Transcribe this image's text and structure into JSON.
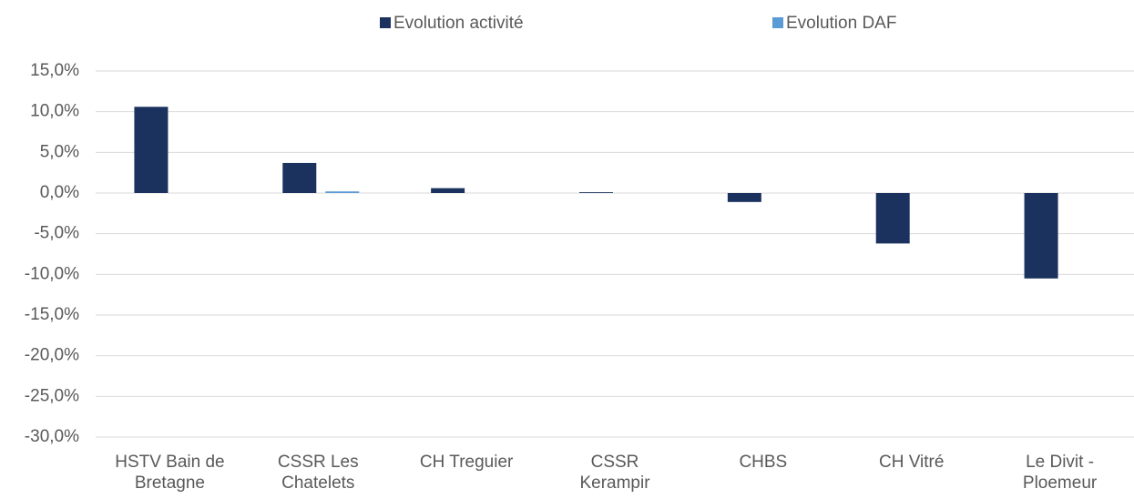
{
  "chart_data": {
    "type": "bar",
    "categories": [
      "HSTV Bain de Bretagne",
      "CSSR Les Chatelets",
      "CH Treguier",
      "CSSR Kerampir",
      "CHBS",
      "CH Vitré",
      "Le Divit - Ploemeur"
    ],
    "series": [
      {
        "name": "Evolution activité",
        "color": "#1b315e",
        "values": [
          10.6,
          3.7,
          0.6,
          0.1,
          -1.1,
          -6.2,
          -10.5
        ]
      },
      {
        "name": "Evolution DAF",
        "color": "#5b9bd5",
        "values": [
          0,
          0.2,
          0,
          0,
          0,
          0,
          0
        ]
      }
    ],
    "ylim": [
      -30,
      15
    ],
    "yticks": [
      {
        "value": -30,
        "label": "-30,0%"
      },
      {
        "value": -25,
        "label": "-25,0%"
      },
      {
        "value": -20,
        "label": "-20,0%"
      },
      {
        "value": -15,
        "label": "-15,0%"
      },
      {
        "value": -10,
        "label": "-10,0%"
      },
      {
        "value": -5,
        "label": "-5,0%"
      },
      {
        "value": 0,
        "label": "0,0%"
      },
      {
        "value": 5,
        "label": "5,0%"
      },
      {
        "value": 10,
        "label": "10,0%"
      },
      {
        "value": 15,
        "label": "15,0%"
      }
    ],
    "grid": true,
    "legend": "top"
  }
}
